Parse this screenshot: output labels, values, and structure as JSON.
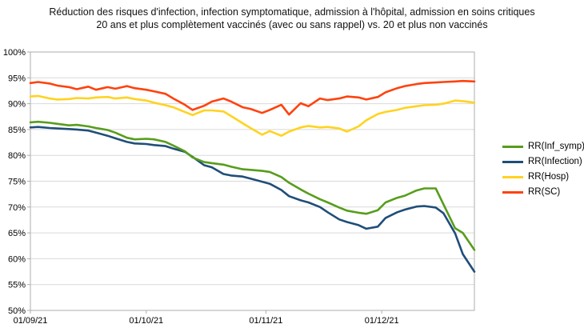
{
  "title": {
    "line1": "Réduction des risques d'infection, infection symptomatique, admission à l'hôpital, admission en soins critiques",
    "line2": "20 ans et plus complètement vaccinés (avec ou sans rappel) vs. 20 et plus non vaccinés"
  },
  "chart_data": {
    "type": "line",
    "x_unit": "days since 01/09/21",
    "x": [
      0,
      2,
      5,
      7,
      10,
      12,
      15,
      17,
      20,
      22,
      25,
      27,
      30,
      32,
      35,
      37,
      40,
      42,
      45,
      47,
      50,
      52,
      55,
      57,
      60,
      62,
      65,
      67,
      70,
      72,
      75,
      77,
      80,
      82,
      85,
      87,
      90,
      92,
      95,
      97,
      100,
      102,
      105,
      107,
      110,
      112,
      115
    ],
    "x_ticks": [
      {
        "day": 0,
        "label": "01/09/21"
      },
      {
        "day": 30,
        "label": "01/10/21"
      },
      {
        "day": 61,
        "label": "01/11/21"
      },
      {
        "day": 91,
        "label": "01/12/21"
      }
    ],
    "ylim": [
      50,
      100
    ],
    "y_tick_step": 5,
    "y_tick_suffix": "%",
    "grid": true,
    "legend_position": "right",
    "series": [
      {
        "name": "RR(Inf_symp)",
        "color": "#579D1C",
        "values": [
          86.4,
          86.5,
          86.3,
          86.1,
          85.8,
          85.9,
          85.6,
          85.3,
          84.9,
          84.4,
          83.4,
          83.1,
          83.2,
          83.1,
          82.6,
          81.9,
          80.8,
          79.6,
          78.7,
          78.5,
          78.2,
          77.8,
          77.3,
          77.2,
          77.0,
          76.8,
          75.8,
          74.7,
          73.4,
          72.6,
          71.5,
          70.9,
          69.9,
          69.3,
          68.9,
          68.7,
          69.4,
          70.9,
          71.8,
          72.2,
          73.2,
          73.6,
          73.6,
          70.5,
          65.9,
          65.0,
          61.7
        ]
      },
      {
        "name": "RR(Infection)",
        "color": "#1F4E79",
        "values": [
          85.4,
          85.5,
          85.3,
          85.2,
          85.1,
          85.0,
          84.8,
          84.4,
          83.8,
          83.3,
          82.6,
          82.3,
          82.2,
          82.0,
          81.8,
          81.3,
          80.7,
          79.7,
          78.1,
          77.7,
          76.4,
          76.1,
          75.9,
          75.5,
          74.9,
          74.5,
          73.3,
          72.1,
          71.3,
          70.9,
          70.0,
          69.0,
          67.6,
          67.1,
          66.5,
          65.8,
          66.2,
          67.9,
          69.0,
          69.5,
          70.1,
          70.2,
          69.9,
          68.8,
          64.9,
          60.9,
          57.5
        ]
      },
      {
        "name": "RR(Hosp)",
        "color": "#FFD320",
        "values": [
          91.4,
          91.5,
          91.0,
          90.8,
          90.9,
          91.1,
          91.0,
          91.2,
          91.3,
          91.0,
          91.2,
          90.9,
          90.6,
          90.2,
          89.7,
          89.3,
          88.4,
          87.8,
          88.7,
          88.7,
          88.5,
          87.6,
          86.2,
          85.3,
          84.0,
          84.7,
          83.8,
          84.6,
          85.4,
          85.7,
          85.4,
          85.5,
          85.2,
          84.6,
          85.6,
          86.8,
          88.0,
          88.4,
          88.8,
          89.2,
          89.5,
          89.7,
          89.8,
          90.0,
          90.6,
          90.5,
          90.2
        ]
      },
      {
        "name": "RR(SC)",
        "color": "#FF420E",
        "values": [
          94.0,
          94.2,
          93.9,
          93.5,
          93.2,
          92.8,
          93.3,
          92.7,
          93.2,
          92.9,
          93.4,
          93.0,
          92.7,
          92.4,
          91.9,
          91.0,
          89.8,
          88.8,
          89.6,
          90.4,
          91.0,
          90.4,
          89.3,
          89.0,
          88.2,
          88.8,
          89.8,
          87.9,
          90.1,
          89.5,
          91.0,
          90.7,
          91.0,
          91.4,
          91.2,
          90.8,
          91.3,
          92.2,
          93.0,
          93.4,
          93.8,
          94.0,
          94.1,
          94.2,
          94.3,
          94.4,
          94.3
        ]
      }
    ],
    "plot_colors": {
      "gridline": "#d9d9d9",
      "border": "#aeaeae",
      "tick": "#aeaeae"
    }
  }
}
